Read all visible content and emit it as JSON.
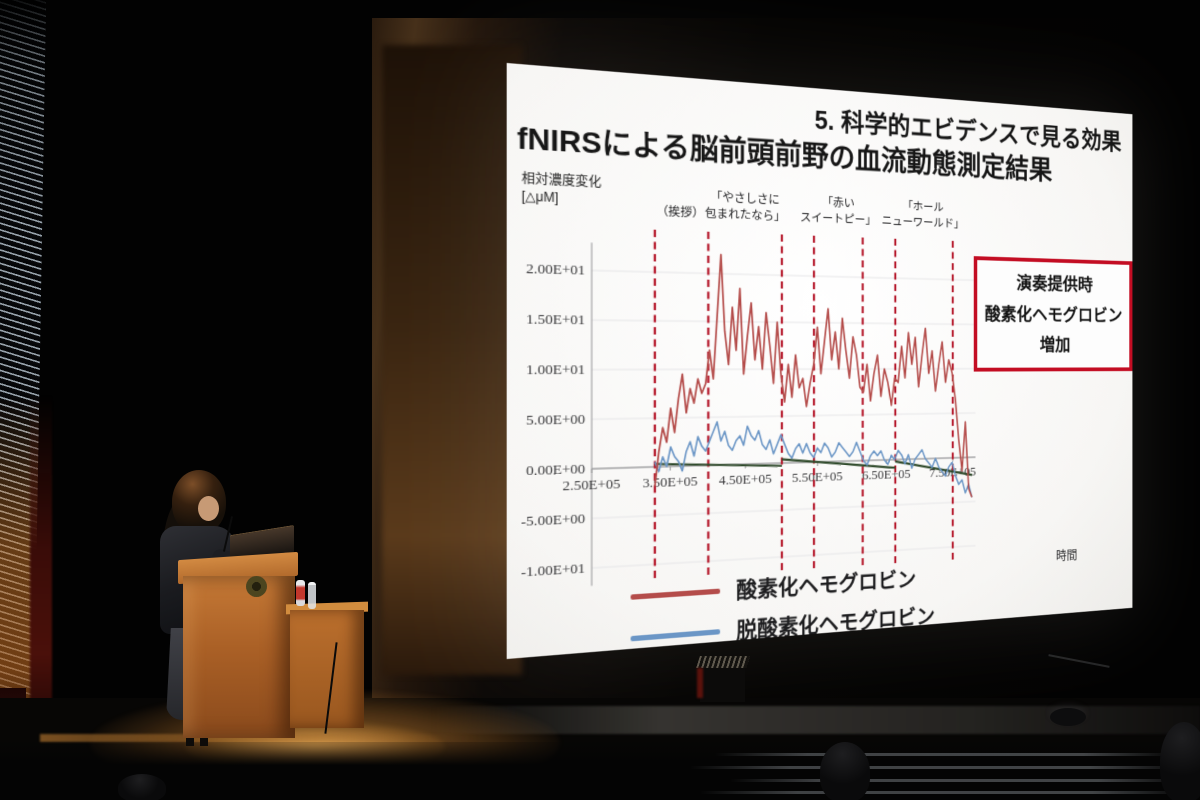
{
  "slide": {
    "header": "5. 科学的エビデンスで見る効果",
    "subtitle": "fNIRSによる脳前頭前野の血流動態測定結果",
    "callout": {
      "lines": [
        "演奏提供時",
        "酸素化ヘモグロビン",
        "増加"
      ],
      "border_color": "#c30d23"
    }
  },
  "chart_data": {
    "type": "line",
    "title": "fNIRSによる脳前頭前野の血流動態測定結果",
    "ylabel_lines": [
      "相対濃度変化",
      "[△μM]"
    ],
    "xlabel": "時間",
    "ylim": [
      -12,
      23
    ],
    "xlim": [
      2.45,
      7.85
    ],
    "grid": "horizontal-faint",
    "legend_position": "bottom",
    "ytick_labels": [
      "2.00E+01",
      "1.50E+01",
      "1.00E+01",
      "5.00E+00",
      "0.00E+00",
      "-5.00E+00",
      "-1.00E+01"
    ],
    "yticks": [
      20,
      15,
      10,
      5,
      0,
      -5,
      -10
    ],
    "xtick_labels": [
      "2.50E+05",
      "3.50E+05",
      "4.50E+05",
      "5.50E+05",
      "6.50E+05",
      "7.50E+05"
    ],
    "xticks": [
      2.5,
      3.5,
      4.5,
      5.5,
      6.5,
      7.5
    ],
    "boundary_color": "#b5182b",
    "boundaries": [
      3.3,
      4.0,
      5.0,
      5.45,
      6.15,
      6.63,
      7.5
    ],
    "annotations": [
      {
        "x": 3.63,
        "lines": [
          "（挨拶）"
        ]
      },
      {
        "x": 4.5,
        "lines": [
          "「やさしさに",
          "包まれたなら」"
        ]
      },
      {
        "x": 5.8,
        "lines": [
          "「赤い",
          "スイートピー」"
        ]
      },
      {
        "x": 7.05,
        "lines": [
          "「ホール",
          "ニューワールド」"
        ]
      }
    ],
    "series": [
      {
        "name": "酸素化ヘモグロビン",
        "color": "#b44c4a",
        "x_start": 3.3,
        "x_step": 0.0511,
        "values": [
          -2.0,
          1.5,
          4.0,
          2.5,
          6.0,
          3.5,
          7.0,
          9.5,
          5.5,
          8.0,
          6.5,
          9.0,
          7.5,
          8.5,
          12.0,
          9.0,
          15.5,
          22.0,
          14.0,
          10.5,
          16.5,
          12.0,
          18.5,
          9.5,
          13.5,
          17.0,
          11.0,
          14.5,
          10.0,
          16.0,
          12.5,
          8.5,
          15.0,
          9.5,
          6.5,
          10.5,
          7.0,
          11.5,
          8.0,
          9.0,
          6.0,
          8.5,
          10.5,
          14.5,
          9.5,
          13.0,
          16.5,
          11.0,
          14.0,
          10.0,
          15.5,
          12.0,
          9.0,
          13.5,
          11.5,
          8.0,
          7.5,
          10.5,
          6.5,
          9.5,
          11.5,
          7.0,
          10.0,
          8.5,
          6.0,
          9.0,
          8.5,
          12.5,
          9.0,
          14.0,
          10.5,
          13.5,
          8.0,
          11.5,
          14.5,
          9.5,
          12.0,
          7.5,
          10.5,
          13.0,
          8.5,
          11.0,
          9.5,
          6.5,
          2.0,
          -1.5,
          4.0,
          -3.5,
          -4.5
        ]
      },
      {
        "name": "脱酸素化ヘモグロビン",
        "color": "#6b96c6",
        "x_start": 3.3,
        "x_step": 0.0511,
        "values": [
          0.5,
          -0.5,
          1.0,
          0.0,
          2.0,
          1.0,
          0.5,
          -0.5,
          1.5,
          2.5,
          1.0,
          3.0,
          2.0,
          1.5,
          2.5,
          3.5,
          4.5,
          2.5,
          3.5,
          2.0,
          1.5,
          2.5,
          3.0,
          2.0,
          4.0,
          3.0,
          2.5,
          3.5,
          2.0,
          1.5,
          2.5,
          1.0,
          2.0,
          3.0,
          2.0,
          1.0,
          0.5,
          1.5,
          2.0,
          1.0,
          2.0,
          1.0,
          0.5,
          1.5,
          1.0,
          2.0,
          1.5,
          0.5,
          1.0,
          2.0,
          1.5,
          1.0,
          0.5,
          1.0,
          2.0,
          1.0,
          0.0,
          -0.5,
          0.5,
          1.0,
          0.5,
          1.0,
          0.0,
          -0.5,
          0.5,
          0.0,
          1.0,
          0.5,
          -0.5,
          0.5,
          -1.0,
          0.0,
          0.5,
          1.0,
          0.0,
          -0.5,
          -1.0,
          0.0,
          -1.0,
          -1.5,
          -2.0,
          -1.0,
          -0.5,
          -2.0,
          -3.0,
          -2.5,
          -4.0,
          -3.0,
          -4.5
        ]
      }
    ],
    "baseline": {
      "color": "#2f4a2b",
      "segments": [
        [
          [
            3.3,
            0.3
          ],
          [
            5.0,
            -0.3
          ]
        ],
        [
          [
            5.0,
            0.4
          ],
          [
            6.63,
            -0.9
          ]
        ],
        [
          [
            6.63,
            -0.2
          ],
          [
            7.8,
            -2.0
          ]
        ]
      ]
    }
  }
}
